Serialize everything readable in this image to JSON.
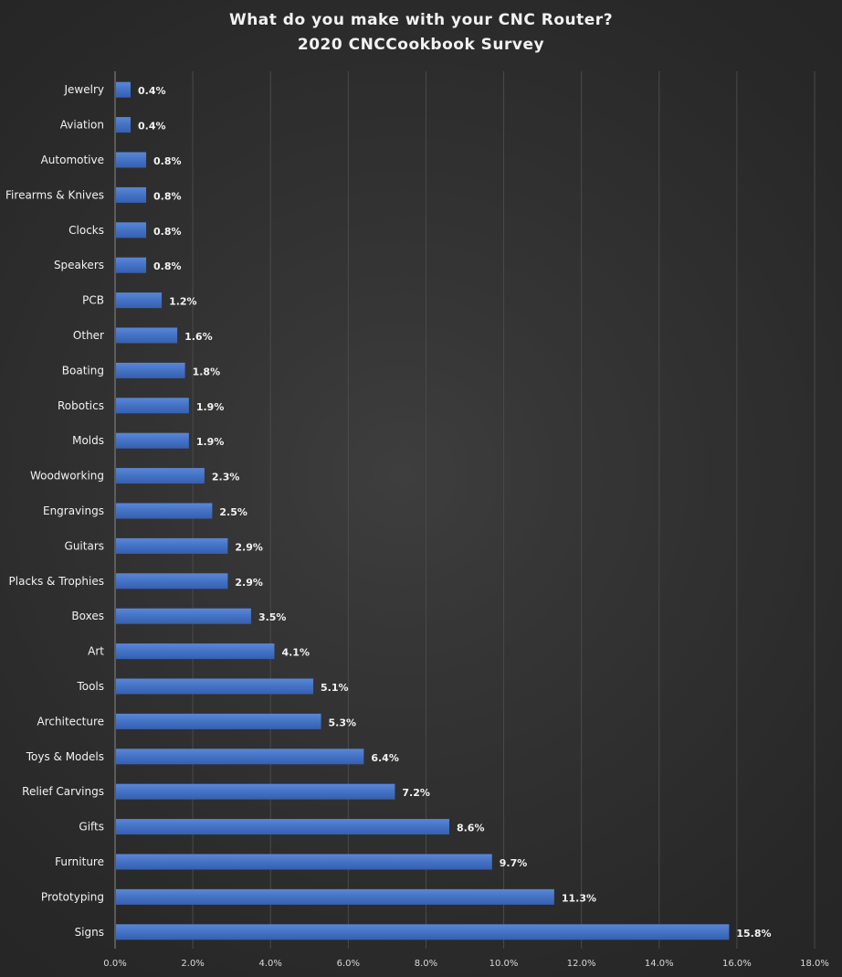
{
  "chart_data": {
    "type": "bar",
    "orientation": "horizontal",
    "title": "What do you make with your CNC Router?",
    "subtitle": "2020 CNCCookbook Survey",
    "xlabel": "",
    "ylabel": "",
    "xlim": [
      0,
      18
    ],
    "x_ticks": [
      "0.0%",
      "2.0%",
      "4.0%",
      "6.0%",
      "8.0%",
      "10.0%",
      "12.0%",
      "14.0%",
      "16.0%",
      "18.0%"
    ],
    "grid": "vertical",
    "categories": [
      "Jewelry",
      "Aviation",
      "Automotive",
      "Firearms & Knives",
      "Clocks",
      "Speakers",
      "PCB",
      "Other",
      "Boating",
      "Robotics",
      "Molds",
      "Woodworking",
      "Engravings",
      "Guitars",
      "Placks & Trophies",
      "Boxes",
      "Art",
      "Tools",
      "Architecture",
      "Toys & Models",
      "Relief Carvings",
      "Gifts",
      "Furniture",
      "Prototyping",
      "Signs"
    ],
    "values": [
      0.4,
      0.4,
      0.8,
      0.8,
      0.8,
      0.8,
      1.2,
      1.6,
      1.8,
      1.9,
      1.9,
      2.3,
      2.5,
      2.9,
      2.9,
      3.5,
      4.1,
      5.1,
      5.3,
      6.4,
      7.2,
      8.6,
      9.7,
      11.3,
      15.8
    ],
    "labels": [
      "0.4%",
      "0.4%",
      "0.8%",
      "0.8%",
      "0.8%",
      "0.8%",
      "1.2%",
      "1.6%",
      "1.8%",
      "1.9%",
      "1.9%",
      "2.3%",
      "2.5%",
      "2.9%",
      "2.9%",
      "3.5%",
      "4.1%",
      "5.1%",
      "5.3%",
      "6.4%",
      "7.2%",
      "8.6%",
      "9.7%",
      "11.3%",
      "15.8%"
    ],
    "bar_color": "#4472c4",
    "text_color": "#f2f2f2"
  }
}
